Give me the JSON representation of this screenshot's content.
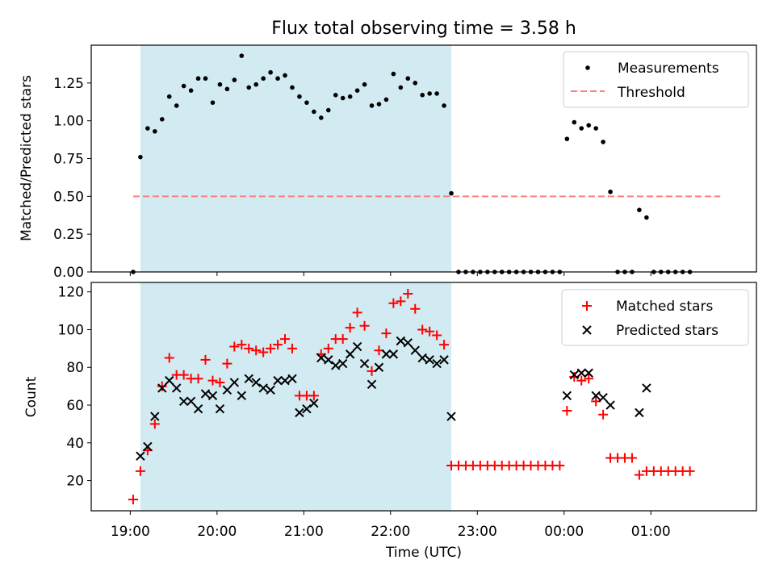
{
  "title": "Flux total observing time = 3.58 h",
  "colors": {
    "shade": "#add8e6",
    "measurement": "#000000",
    "threshold": "#ff7f7f",
    "matched": "#ff0000",
    "predicted": "#000000"
  },
  "chart_data": [
    {
      "type": "scatter",
      "ylabel": "Matched/Predicted stars",
      "ylim": [
        0,
        1.5
      ],
      "yticks": [
        0.0,
        0.25,
        0.5,
        0.75,
        1.0,
        1.25
      ],
      "ytick_labels": [
        "0.00",
        "0.25",
        "0.50",
        "0.75",
        "1.00",
        "1.25"
      ],
      "xlim": [
        "18:33",
        "02:13"
      ],
      "xticks": [
        "19:00",
        "20:00",
        "21:00",
        "22:00",
        "23:00",
        "00:00",
        "01:00"
      ],
      "shaded_span": [
        "19:07",
        "22:42"
      ],
      "legend": {
        "position": "top-right",
        "entries": [
          "Measurements",
          "Threshold"
        ]
      },
      "threshold": {
        "name": "Threshold",
        "value": 0.5,
        "x_range": [
          "19:02",
          "01:48"
        ]
      },
      "series": [
        {
          "name": "Measurements",
          "points": [
            [
              "19:02",
              0.0
            ],
            [
              "19:07",
              0.76
            ],
            [
              "19:12",
              0.95
            ],
            [
              "19:17",
              0.93
            ],
            [
              "19:22",
              1.01
            ],
            [
              "19:27",
              1.16
            ],
            [
              "19:32",
              1.1
            ],
            [
              "19:37",
              1.23
            ],
            [
              "19:42",
              1.2
            ],
            [
              "19:47",
              1.28
            ],
            [
              "19:52",
              1.28
            ],
            [
              "19:57",
              1.12
            ],
            [
              "20:02",
              1.24
            ],
            [
              "20:07",
              1.21
            ],
            [
              "20:12",
              1.27
            ],
            [
              "20:17",
              1.43
            ],
            [
              "20:22",
              1.22
            ],
            [
              "20:27",
              1.24
            ],
            [
              "20:32",
              1.28
            ],
            [
              "20:37",
              1.32
            ],
            [
              "20:42",
              1.28
            ],
            [
              "20:47",
              1.3
            ],
            [
              "20:52",
              1.22
            ],
            [
              "20:57",
              1.16
            ],
            [
              "21:02",
              1.12
            ],
            [
              "21:07",
              1.06
            ],
            [
              "21:12",
              1.02
            ],
            [
              "21:17",
              1.07
            ],
            [
              "21:22",
              1.17
            ],
            [
              "21:27",
              1.15
            ],
            [
              "21:32",
              1.16
            ],
            [
              "21:37",
              1.2
            ],
            [
              "21:42",
              1.24
            ],
            [
              "21:47",
              1.1
            ],
            [
              "21:52",
              1.11
            ],
            [
              "21:57",
              1.14
            ],
            [
              "22:02",
              1.31
            ],
            [
              "22:07",
              1.22
            ],
            [
              "22:12",
              1.28
            ],
            [
              "22:17",
              1.25
            ],
            [
              "22:22",
              1.17
            ],
            [
              "22:27",
              1.18
            ],
            [
              "22:32",
              1.18
            ],
            [
              "22:37",
              1.1
            ],
            [
              "22:42",
              0.52
            ],
            [
              "22:47",
              0.0
            ],
            [
              "22:52",
              0.0
            ],
            [
              "22:57",
              0.0
            ],
            [
              "23:02",
              0.0
            ],
            [
              "23:07",
              0.0
            ],
            [
              "23:12",
              0.0
            ],
            [
              "23:17",
              0.0
            ],
            [
              "23:22",
              0.0
            ],
            [
              "23:27",
              0.0
            ],
            [
              "23:32",
              0.0
            ],
            [
              "23:37",
              0.0
            ],
            [
              "23:42",
              0.0
            ],
            [
              "23:47",
              0.0
            ],
            [
              "23:52",
              0.0
            ],
            [
              "23:57",
              0.0
            ],
            [
              "00:02",
              0.88
            ],
            [
              "00:07",
              0.99
            ],
            [
              "00:12",
              0.95
            ],
            [
              "00:17",
              0.97
            ],
            [
              "00:22",
              0.95
            ],
            [
              "00:27",
              0.86
            ],
            [
              "00:32",
              0.53
            ],
            [
              "00:37",
              0.0
            ],
            [
              "00:42",
              0.0
            ],
            [
              "00:47",
              0.0
            ],
            [
              "00:52",
              0.41
            ],
            [
              "00:57",
              0.36
            ],
            [
              "01:02",
              0.0
            ],
            [
              "01:07",
              0.0
            ],
            [
              "01:12",
              0.0
            ],
            [
              "01:17",
              0.0
            ],
            [
              "01:22",
              0.0
            ],
            [
              "01:27",
              0.0
            ]
          ]
        }
      ]
    },
    {
      "type": "scatter",
      "xlabel": "Time (UTC)",
      "ylabel": "Count",
      "ylim": [
        4,
        125
      ],
      "yticks": [
        20,
        40,
        60,
        80,
        100,
        120
      ],
      "ytick_labels": [
        "20",
        "40",
        "60",
        "80",
        "100",
        "120"
      ],
      "xlim": [
        "18:33",
        "02:13"
      ],
      "xticks": [
        "19:00",
        "20:00",
        "21:00",
        "22:00",
        "23:00",
        "00:00",
        "01:00"
      ],
      "shaded_span": [
        "19:07",
        "22:42"
      ],
      "legend": {
        "position": "top-right",
        "entries": [
          "Matched stars",
          "Predicted stars"
        ]
      },
      "series": [
        {
          "name": "Matched stars",
          "points": [
            [
              "19:02",
              10
            ],
            [
              "19:07",
              25
            ],
            [
              "19:12",
              36
            ],
            [
              "19:17",
              50
            ],
            [
              "19:22",
              70
            ],
            [
              "19:27",
              85
            ],
            [
              "19:32",
              76
            ],
            [
              "19:37",
              76
            ],
            [
              "19:42",
              74
            ],
            [
              "19:47",
              74
            ],
            [
              "19:52",
              84
            ],
            [
              "19:57",
              73
            ],
            [
              "20:02",
              72
            ],
            [
              "20:07",
              82
            ],
            [
              "20:12",
              91
            ],
            [
              "20:17",
              92
            ],
            [
              "20:22",
              90
            ],
            [
              "20:27",
              89
            ],
            [
              "20:32",
              88
            ],
            [
              "20:37",
              90
            ],
            [
              "20:42",
              92
            ],
            [
              "20:47",
              95
            ],
            [
              "20:52",
              90
            ],
            [
              "20:57",
              65
            ],
            [
              "21:02",
              65
            ],
            [
              "21:07",
              65
            ],
            [
              "21:12",
              87
            ],
            [
              "21:17",
              90
            ],
            [
              "21:22",
              95
            ],
            [
              "21:27",
              95
            ],
            [
              "21:32",
              101
            ],
            [
              "21:37",
              109
            ],
            [
              "21:42",
              102
            ],
            [
              "21:47",
              78
            ],
            [
              "21:52",
              89
            ],
            [
              "21:57",
              98
            ],
            [
              "22:02",
              114
            ],
            [
              "22:07",
              115
            ],
            [
              "22:12",
              119
            ],
            [
              "22:17",
              111
            ],
            [
              "22:22",
              100
            ],
            [
              "22:27",
              99
            ],
            [
              "22:32",
              97
            ],
            [
              "22:37",
              92
            ],
            [
              "22:42",
              28
            ],
            [
              "22:47",
              28
            ],
            [
              "22:52",
              28
            ],
            [
              "22:57",
              28
            ],
            [
              "23:02",
              28
            ],
            [
              "23:07",
              28
            ],
            [
              "23:12",
              28
            ],
            [
              "23:17",
              28
            ],
            [
              "23:22",
              28
            ],
            [
              "23:27",
              28
            ],
            [
              "23:32",
              28
            ],
            [
              "23:37",
              28
            ],
            [
              "23:42",
              28
            ],
            [
              "23:47",
              28
            ],
            [
              "23:52",
              28
            ],
            [
              "23:57",
              28
            ],
            [
              "00:02",
              57
            ],
            [
              "00:07",
              75
            ],
            [
              "00:12",
              73
            ],
            [
              "00:17",
              74
            ],
            [
              "00:22",
              62
            ],
            [
              "00:27",
              55
            ],
            [
              "00:32",
              32
            ],
            [
              "00:37",
              32
            ],
            [
              "00:42",
              32
            ],
            [
              "00:47",
              32
            ],
            [
              "00:52",
              23
            ],
            [
              "00:57",
              25
            ],
            [
              "01:02",
              25
            ],
            [
              "01:07",
              25
            ],
            [
              "01:12",
              25
            ],
            [
              "01:17",
              25
            ],
            [
              "01:22",
              25
            ],
            [
              "01:27",
              25
            ]
          ]
        },
        {
          "name": "Predicted stars",
          "points": [
            [
              "19:07",
              33
            ],
            [
              "19:12",
              38
            ],
            [
              "19:17",
              54
            ],
            [
              "19:22",
              69
            ],
            [
              "19:27",
              73
            ],
            [
              "19:32",
              69
            ],
            [
              "19:37",
              62
            ],
            [
              "19:42",
              62
            ],
            [
              "19:47",
              58
            ],
            [
              "19:52",
              66
            ],
            [
              "19:57",
              65
            ],
            [
              "20:02",
              58
            ],
            [
              "20:07",
              68
            ],
            [
              "20:12",
              72
            ],
            [
              "20:17",
              65
            ],
            [
              "20:22",
              74
            ],
            [
              "20:27",
              72
            ],
            [
              "20:32",
              69
            ],
            [
              "20:37",
              68
            ],
            [
              "20:42",
              73
            ],
            [
              "20:47",
              73
            ],
            [
              "20:52",
              74
            ],
            [
              "20:57",
              56
            ],
            [
              "21:02",
              58
            ],
            [
              "21:07",
              61
            ],
            [
              "21:12",
              85
            ],
            [
              "21:17",
              84
            ],
            [
              "21:22",
              81
            ],
            [
              "21:27",
              82
            ],
            [
              "21:32",
              87
            ],
            [
              "21:37",
              91
            ],
            [
              "21:42",
              82
            ],
            [
              "21:47",
              71
            ],
            [
              "21:52",
              80
            ],
            [
              "21:57",
              87
            ],
            [
              "22:02",
              87
            ],
            [
              "22:07",
              94
            ],
            [
              "22:12",
              93
            ],
            [
              "22:17",
              89
            ],
            [
              "22:22",
              85
            ],
            [
              "22:27",
              84
            ],
            [
              "22:32",
              82
            ],
            [
              "22:37",
              84
            ],
            [
              "22:42",
              54
            ],
            [
              "00:02",
              65
            ],
            [
              "00:07",
              76
            ],
            [
              "00:12",
              77
            ],
            [
              "00:17",
              77
            ],
            [
              "00:22",
              65
            ],
            [
              "00:27",
              64
            ],
            [
              "00:32",
              60
            ],
            [
              "00:52",
              56
            ],
            [
              "00:57",
              69
            ]
          ]
        }
      ]
    }
  ]
}
